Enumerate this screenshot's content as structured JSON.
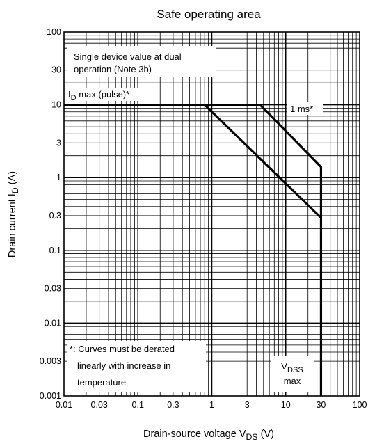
{
  "chart_data": {
    "type": "line",
    "title": "Safe operating area",
    "xscale": "log",
    "yscale": "log",
    "xlim": [
      0.01,
      100
    ],
    "ylim": [
      0.001,
      100
    ],
    "grid": true,
    "x_ticks": [
      {
        "value": 0.01,
        "label": "0.01"
      },
      {
        "value": 0.03,
        "label": "0.03"
      },
      {
        "value": 0.1,
        "label": "0.1"
      },
      {
        "value": 0.3,
        "label": "0.3"
      },
      {
        "value": 1,
        "label": "1"
      },
      {
        "value": 3,
        "label": "3"
      },
      {
        "value": 10,
        "label": "10"
      },
      {
        "value": 30,
        "label": "30"
      },
      {
        "value": 100,
        "label": "100"
      }
    ],
    "y_ticks": [
      {
        "value": 100,
        "label": "100"
      },
      {
        "value": 30,
        "label": "30"
      },
      {
        "value": 10,
        "label": "10"
      },
      {
        "value": 3,
        "label": "3"
      },
      {
        "value": 1,
        "label": "1"
      },
      {
        "value": 0.3,
        "label": "0.3"
      },
      {
        "value": 0.1,
        "label": "0.1"
      },
      {
        "value": 0.03,
        "label": "0.03"
      },
      {
        "value": 0.01,
        "label": "0.01"
      },
      {
        "value": 0.003,
        "label": "0.003"
      },
      {
        "value": 0.001,
        "label": "0.001"
      }
    ],
    "xlabel": {
      "main": "Drain-source voltage  V",
      "sub": "DS",
      "unit": "(V)"
    },
    "ylabel": {
      "main": "Drain current  I",
      "sub": "D",
      "unit": "(A)"
    },
    "series": [
      {
        "points": [
          [
            0.01,
            10
          ],
          [
            4.5,
            10
          ],
          [
            30,
            1.4
          ],
          [
            30,
            0.001
          ]
        ]
      },
      {
        "points": [
          [
            0.8,
            10
          ],
          [
            30,
            0.28
          ]
        ]
      }
    ],
    "annotations": {
      "single_device": [
        "Single device value at dual",
        "operation (Note 3b)"
      ],
      "id_max": {
        "main": "I",
        "sub": "D",
        "rest": " max (pulse)*"
      },
      "one_ms": "1 ms*",
      "note": [
        "*: Curves must be derated",
        "linearly with increase in",
        "temperature"
      ],
      "vdss": {
        "main": "V",
        "sub": "DSS",
        "line2": "max"
      }
    }
  }
}
